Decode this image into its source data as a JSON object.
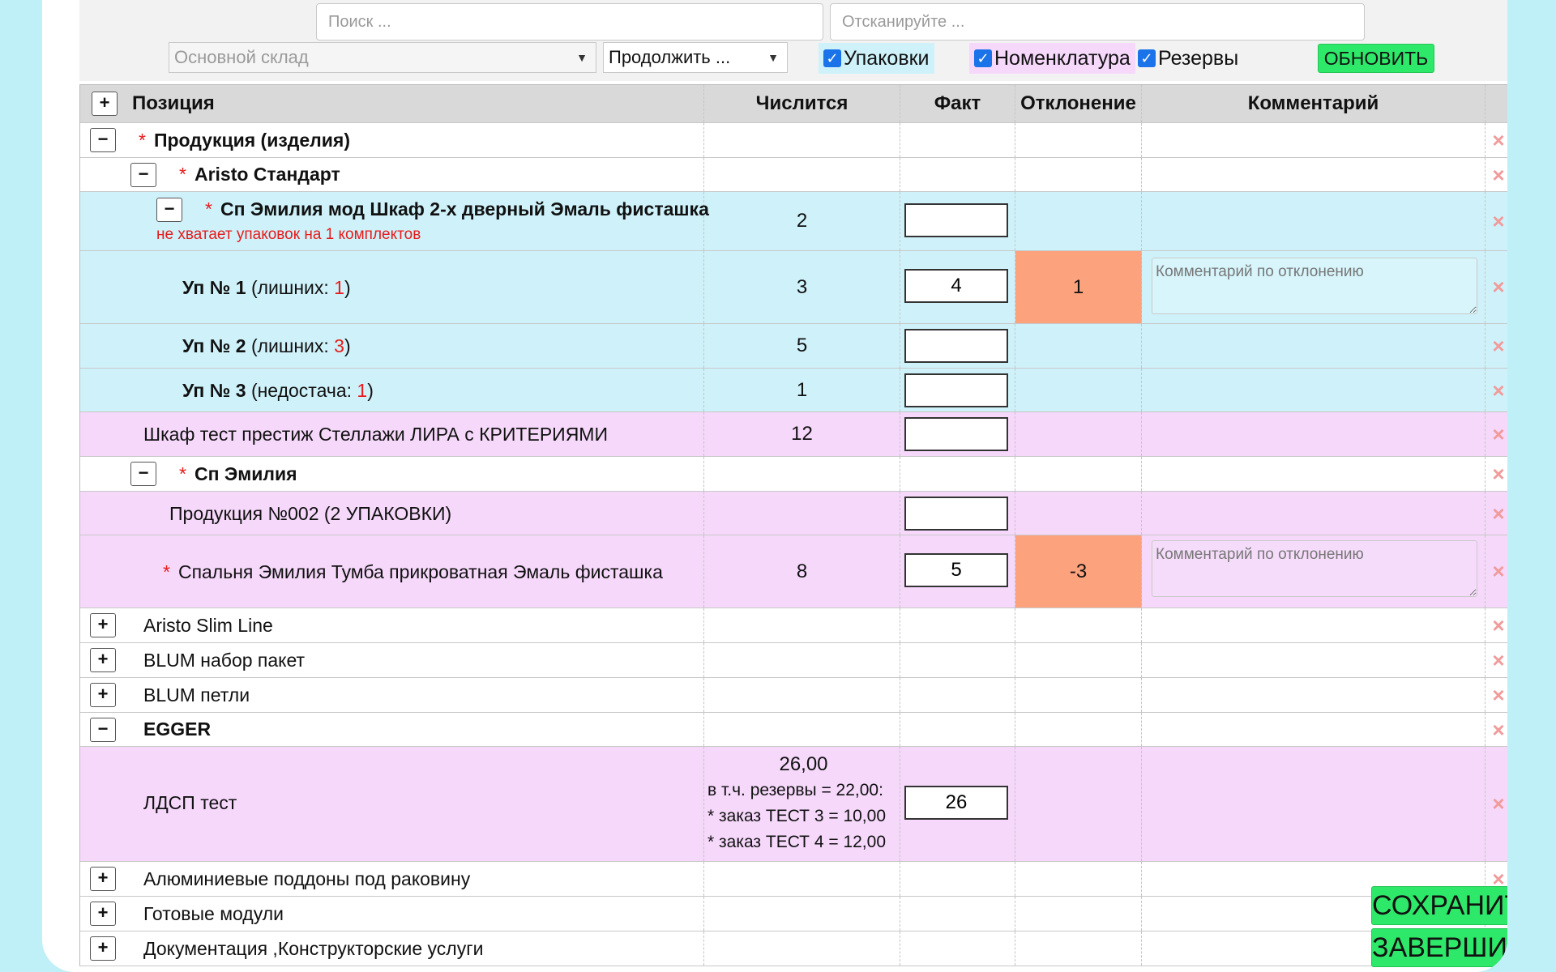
{
  "toolbar": {
    "search_placeholder": "Поиск ...",
    "scan_placeholder": "Отсканируйте ...",
    "warehouse_select": "Основной склад",
    "continue_select": "Продолжить ...",
    "checkbox_packages": "Упаковки",
    "checkbox_nomenclature": "Номенклатура",
    "checkbox_reserves": "Резервы",
    "refresh_button": "ОБНОВИТЬ"
  },
  "table": {
    "headers": {
      "position": "Позиция",
      "expected": "Числится",
      "fact": "Факт",
      "deviation": "Отклонение",
      "comment": "Комментарий"
    },
    "comment_placeholder": "Комментарий по отклонению",
    "rows": [
      {
        "label": "Продукция (изделия)"
      },
      {
        "label": "Aristo Стандарт"
      },
      {
        "label": "Сп Эмилия мод Шкаф 2-х дверный Эмаль фисташка",
        "warning": "не хватает упаковок на 1 комплектов",
        "expected": "2"
      },
      {
        "label": "Уп № 1",
        "note_pre": "(лишних: ",
        "note_num": "1",
        "note_post": ")",
        "expected": "3",
        "fact": "4",
        "deviation": "1"
      },
      {
        "label": "Уп № 2",
        "note_pre": "(лишних: ",
        "note_num": "3",
        "note_post": ")",
        "expected": "5"
      },
      {
        "label": "Уп № 3",
        "note_pre": "(недостача: ",
        "note_num": "1",
        "note_post": ")",
        "expected": "1"
      },
      {
        "label": "Шкаф тест престиж Стеллажи ЛИРА с КРИТЕРИЯМИ",
        "expected": "12"
      },
      {
        "label": "Сп Эмилия"
      },
      {
        "label": "Продукция №002 (2 УПАКОВКИ)"
      },
      {
        "label": "Спальня Эмилия Тумба прикроватная Эмаль фисташка",
        "expected": "8",
        "fact": "5",
        "deviation": "-3"
      },
      {
        "label": "Aristo Slim Line"
      },
      {
        "label": "BLUM набор пакет"
      },
      {
        "label": "BLUM петли"
      },
      {
        "label": "EGGER"
      },
      {
        "label": "ЛДСП тест",
        "expected": "26,00",
        "reserve_lines": [
          "в т.ч. резервы = 22,00:",
          "* заказ ТЕСТ 3 = 10,00",
          "* заказ ТЕСТ 4 = 12,00"
        ],
        "fact": "26"
      },
      {
        "label": "Алюминиевые поддоны под раковину"
      },
      {
        "label": "Готовые модули"
      },
      {
        "label": "Документация ,Конструкторские услуги"
      }
    ]
  },
  "actions": {
    "save": "СОХРАНИТЬ",
    "finish": "ЗАВЕРШИТЬ"
  },
  "colors": {
    "page_background": "#bff0f8",
    "row_blue": "#cff2fa",
    "row_pink": "#f6d8fb",
    "deviation_highlight": "#fca37e",
    "button_green": "#2ee86a",
    "required_star": "#e81b1b"
  },
  "icons": [
    "print-icon",
    "delete-x-icon",
    "expand-plus-icon",
    "collapse-minus-icon",
    "checkbox-checked-icon",
    "dropdown-arrow-icon"
  ]
}
